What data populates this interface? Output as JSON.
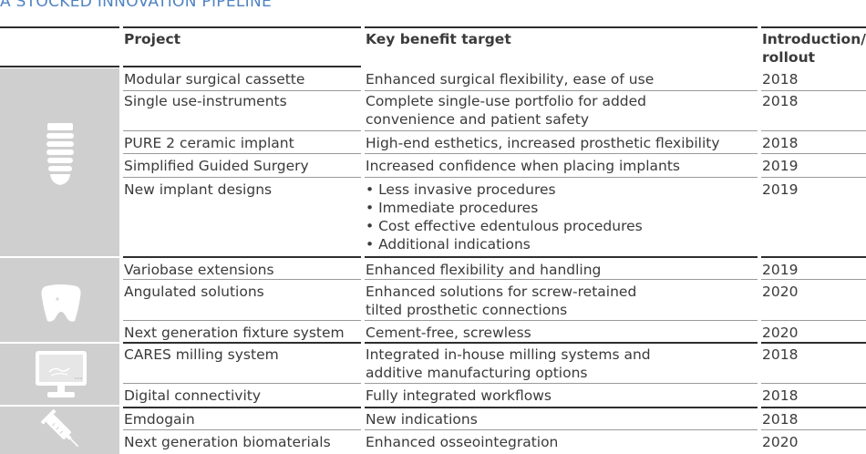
{
  "title": "A STOCKED INNOVATION PIPELINE",
  "headers": {
    "project": "Project",
    "benefit": "Key benefit target",
    "intro_line1": "Introduction/",
    "intro_line2": "rollout"
  },
  "icons": [
    "implant-icon",
    "crown-icon",
    "monitor-icon",
    "syringe-icon"
  ],
  "rows": [
    {
      "project": "Modular surgical cassette",
      "benefit": [
        "Enhanced surgical flexibility, ease of use"
      ],
      "year": "2018"
    },
    {
      "project": "Single use-instruments",
      "benefit": [
        "Complete single-use portfolio for added",
        "convenience and patient safety"
      ],
      "year": "2018"
    },
    {
      "project": "PURE 2 ceramic implant",
      "benefit": [
        "High-end esthetics, increased prosthetic flexibility"
      ],
      "year": "2018"
    },
    {
      "project": "Simplified Guided Surgery",
      "benefit": [
        "Increased confidence when placing implants"
      ],
      "year": "2019"
    },
    {
      "project": "New implant designs",
      "benefit": [
        "• Less invasive procedures",
        "• Immediate procedures",
        "• Cost effective edentulous procedures",
        "• Additional indications"
      ],
      "year": "2019"
    },
    {
      "project": "Variobase extensions",
      "benefit": [
        "Enhanced flexibility and handling"
      ],
      "year": "2019"
    },
    {
      "project": "Angulated solutions",
      "benefit": [
        "Enhanced solutions for screw-retained",
        "tilted prosthetic connections"
      ],
      "year": "2020"
    },
    {
      "project": "Next generation fixture system",
      "benefit": [
        "Cement-free, screwless"
      ],
      "year": "2020"
    },
    {
      "project": "CARES milling system",
      "benefit": [
        "Integrated in-house milling systems and",
        "additive manufacturing options"
      ],
      "year": "2018"
    },
    {
      "project": "Digital connectivity",
      "benefit": [
        "Fully integrated workflows"
      ],
      "year": "2018"
    },
    {
      "project": "Emdogain",
      "benefit": [
        "New indications"
      ],
      "year": "2018"
    },
    {
      "project": "Next generation biomaterials",
      "benefit": [
        "Enhanced osseointegration"
      ],
      "year": "2020"
    }
  ]
}
